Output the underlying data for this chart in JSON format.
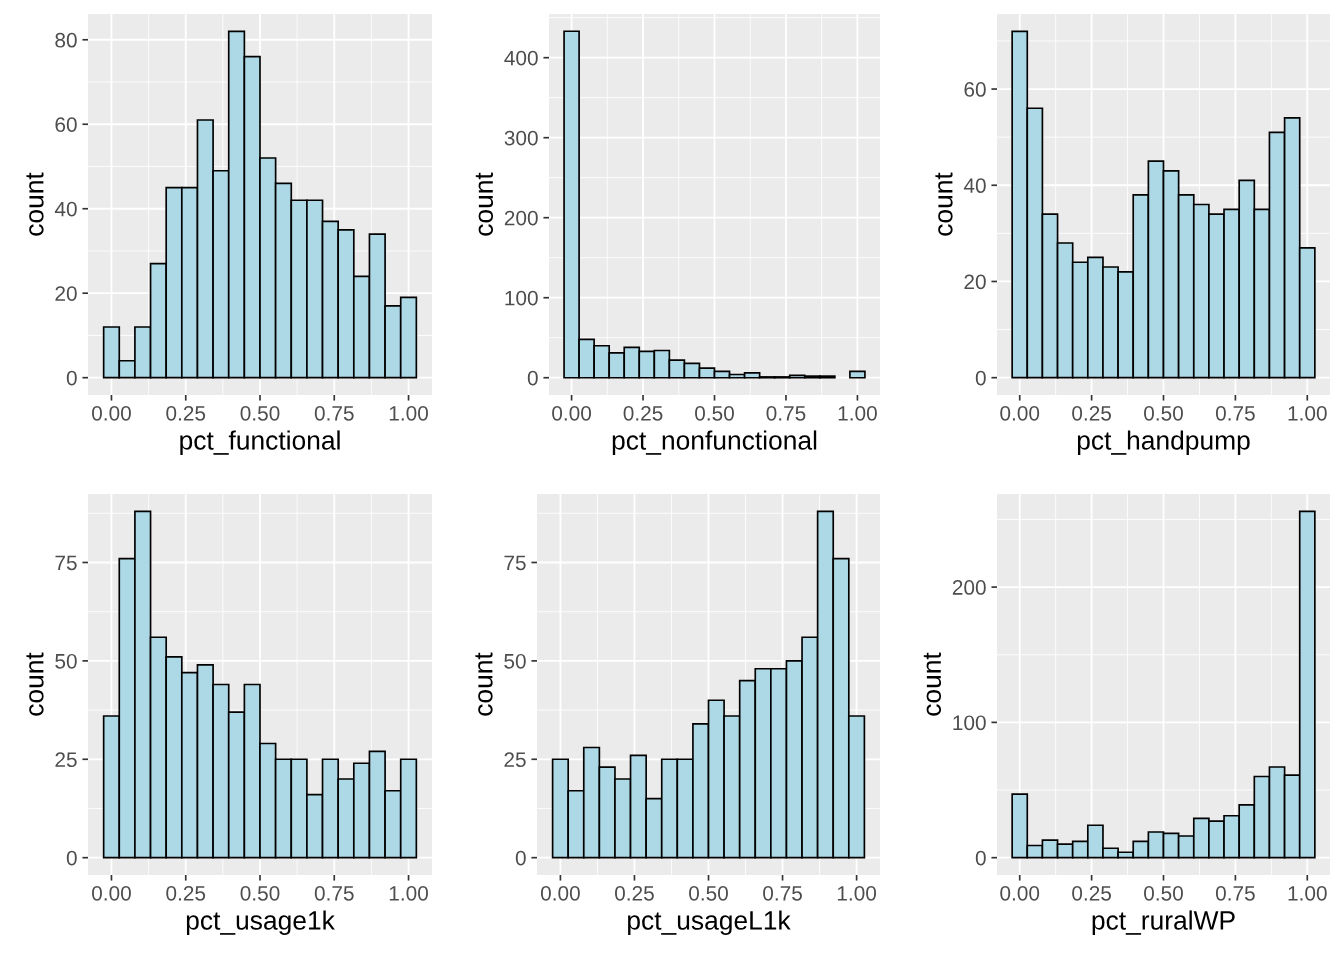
{
  "chart_data": [
    {
      "type": "histogram",
      "xlabel": "pct_functional",
      "ylabel": "count",
      "color": "#add8e6",
      "grid": true,
      "bins": [
        -0.0263,
        0.0263,
        0.0789,
        0.1316,
        0.1842,
        0.2368,
        0.2895,
        0.3421,
        0.3947,
        0.4474,
        0.5,
        0.5526,
        0.6053,
        0.6579,
        0.7105,
        0.7632,
        0.8158,
        0.8684,
        0.9211,
        0.9737,
        1.0263
      ],
      "values": [
        12,
        4,
        12,
        27,
        45,
        45,
        61,
        49,
        82,
        76,
        52,
        46,
        42,
        42,
        37,
        35,
        24,
        34,
        17,
        19
      ],
      "xlim": [
        -0.079,
        1.079
      ],
      "xticks": [
        {
          "value": 0,
          "label": "0.00"
        },
        {
          "value": 0.25,
          "label": "0.25"
        },
        {
          "value": 0.5,
          "label": "0.50"
        },
        {
          "value": 0.75,
          "label": "0.75"
        },
        {
          "value": 1,
          "label": "1.00"
        }
      ],
      "ylim": [
        -4.1,
        86.1
      ],
      "yticks": [
        0,
        20,
        40,
        60,
        80
      ]
    },
    {
      "type": "histogram",
      "xlabel": "pct_nonfunctional",
      "ylabel": "count",
      "color": "#add8e6",
      "grid": true,
      "bins": [
        -0.0263,
        0.0263,
        0.0789,
        0.1316,
        0.1842,
        0.2368,
        0.2895,
        0.3421,
        0.3947,
        0.4474,
        0.5,
        0.5526,
        0.6053,
        0.6579,
        0.7105,
        0.7632,
        0.8158,
        0.8684,
        0.9211,
        0.9737,
        1.0263
      ],
      "values": [
        433,
        48,
        40,
        31,
        38,
        33,
        34,
        22,
        18,
        12,
        8,
        4,
        6,
        1,
        1,
        3,
        2,
        2,
        0,
        8
      ],
      "xlim": [
        -0.079,
        1.079
      ],
      "xticks": [
        {
          "value": 0,
          "label": "0.00"
        },
        {
          "value": 0.25,
          "label": "0.25"
        },
        {
          "value": 0.5,
          "label": "0.50"
        },
        {
          "value": 0.75,
          "label": "0.75"
        },
        {
          "value": 1,
          "label": "1.00"
        }
      ],
      "ylim": [
        -21.6,
        454.6
      ],
      "yticks": [
        0,
        100,
        200,
        300,
        400
      ]
    },
    {
      "type": "histogram",
      "xlabel": "pct_handpump",
      "ylabel": "count",
      "color": "#add8e6",
      "grid": true,
      "bins": [
        -0.0263,
        0.0263,
        0.0789,
        0.1316,
        0.1842,
        0.2368,
        0.2895,
        0.3421,
        0.3947,
        0.4474,
        0.5,
        0.5526,
        0.6053,
        0.6579,
        0.7105,
        0.7632,
        0.8158,
        0.8684,
        0.9211,
        0.9737,
        1.0263
      ],
      "values": [
        72,
        56,
        34,
        28,
        24,
        25,
        23,
        22,
        38,
        45,
        43,
        38,
        36,
        34,
        35,
        41,
        35,
        51,
        54,
        27
      ],
      "xlim": [
        -0.079,
        1.079
      ],
      "xticks": [
        {
          "value": 0,
          "label": "0.00"
        },
        {
          "value": 0.25,
          "label": "0.25"
        },
        {
          "value": 0.5,
          "label": "0.50"
        },
        {
          "value": 0.75,
          "label": "0.75"
        },
        {
          "value": 1,
          "label": "1.00"
        }
      ],
      "ylim": [
        -3.6,
        75.6
      ],
      "yticks": [
        0,
        20,
        40,
        60
      ]
    },
    {
      "type": "histogram",
      "xlabel": "pct_usage1k",
      "ylabel": "count",
      "color": "#add8e6",
      "grid": true,
      "bins": [
        -0.0263,
        0.0263,
        0.0789,
        0.1316,
        0.1842,
        0.2368,
        0.2895,
        0.3421,
        0.3947,
        0.4474,
        0.5,
        0.5526,
        0.6053,
        0.6579,
        0.7105,
        0.7632,
        0.8158,
        0.8684,
        0.9211,
        0.9737,
        1.0263
      ],
      "values": [
        36,
        76,
        88,
        56,
        51,
        47,
        49,
        44,
        37,
        44,
        29,
        25,
        25,
        16,
        25,
        20,
        24,
        27,
        17,
        25
      ],
      "xlim": [
        -0.079,
        1.079
      ],
      "xticks": [
        {
          "value": 0,
          "label": "0.00"
        },
        {
          "value": 0.25,
          "label": "0.25"
        },
        {
          "value": 0.5,
          "label": "0.50"
        },
        {
          "value": 0.75,
          "label": "0.75"
        },
        {
          "value": 1,
          "label": "1.00"
        }
      ],
      "ylim": [
        -4.4,
        92.4
      ],
      "yticks": [
        0,
        25,
        50,
        75
      ]
    },
    {
      "type": "histogram",
      "xlabel": "pct_usageL1k",
      "ylabel": "count",
      "color": "#add8e6",
      "grid": true,
      "bins": [
        -0.0263,
        0.0263,
        0.0789,
        0.1316,
        0.1842,
        0.2368,
        0.2895,
        0.3421,
        0.3947,
        0.4474,
        0.5,
        0.5526,
        0.6053,
        0.6579,
        0.7105,
        0.7632,
        0.8158,
        0.8684,
        0.9211,
        0.9737,
        1.0263
      ],
      "values": [
        25,
        17,
        28,
        23,
        20,
        26,
        15,
        25,
        25,
        34,
        40,
        36,
        45,
        48,
        48,
        50,
        56,
        88,
        76,
        36
      ],
      "xlim": [
        -0.079,
        1.079
      ],
      "xticks": [
        {
          "value": 0,
          "label": "0.00"
        },
        {
          "value": 0.25,
          "label": "0.25"
        },
        {
          "value": 0.5,
          "label": "0.50"
        },
        {
          "value": 0.75,
          "label": "0.75"
        },
        {
          "value": 1,
          "label": "1.00"
        }
      ],
      "ylim": [
        -4.4,
        92.4
      ],
      "yticks": [
        0,
        25,
        50,
        75
      ]
    },
    {
      "type": "histogram",
      "xlabel": "pct_ruralWP",
      "ylabel": "count",
      "color": "#add8e6",
      "grid": true,
      "bins": [
        -0.0263,
        0.0263,
        0.0789,
        0.1316,
        0.1842,
        0.2368,
        0.2895,
        0.3421,
        0.3947,
        0.4474,
        0.5,
        0.5526,
        0.6053,
        0.6579,
        0.7105,
        0.7632,
        0.8158,
        0.8684,
        0.9211,
        0.9737,
        1.0263
      ],
      "values": [
        47,
        9,
        13,
        10,
        12,
        24,
        7,
        4,
        12,
        19,
        18,
        16,
        29,
        27,
        31,
        39,
        60,
        67,
        61,
        256
      ],
      "xlim": [
        -0.079,
        1.079
      ],
      "xticks": [
        {
          "value": 0,
          "label": "0.00"
        },
        {
          "value": 0.25,
          "label": "0.25"
        },
        {
          "value": 0.5,
          "label": "0.50"
        },
        {
          "value": 0.75,
          "label": "0.75"
        },
        {
          "value": 1,
          "label": "1.00"
        }
      ],
      "ylim": [
        -12.8,
        268.8
      ],
      "yticks": [
        0,
        100,
        200
      ]
    }
  ]
}
